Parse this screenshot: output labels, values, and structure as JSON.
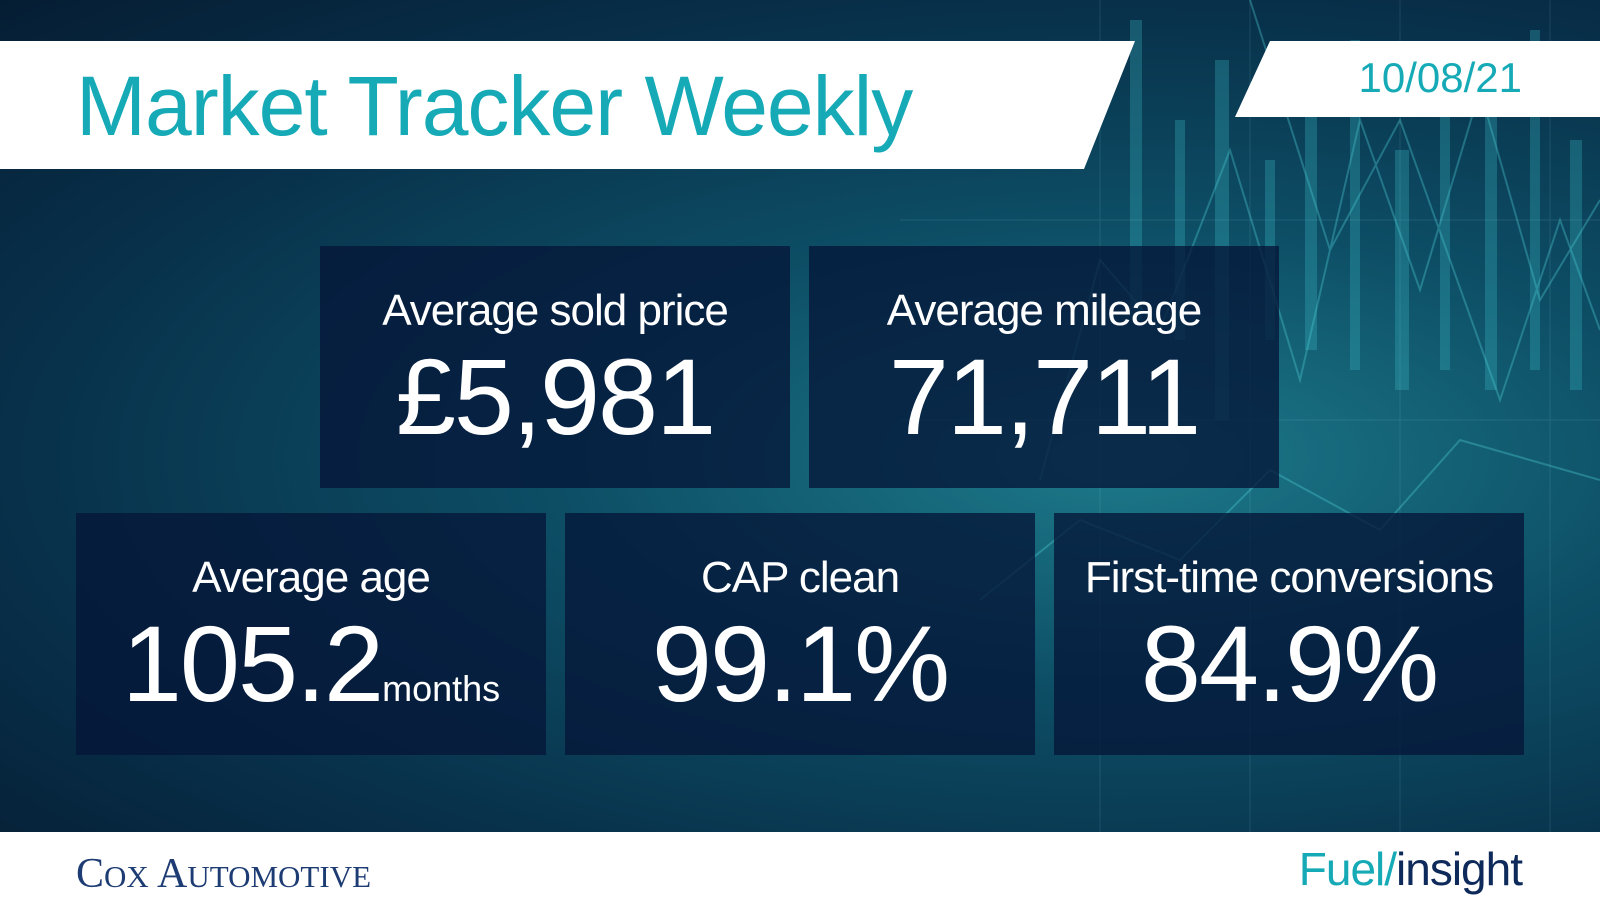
{
  "header": {
    "title": "Market Tracker Weekly",
    "date": "10/08/21"
  },
  "metrics": [
    {
      "label": "Average sold price",
      "value": "£5,981",
      "unit": ""
    },
    {
      "label": "Average mileage",
      "value": "71,711",
      "unit": ""
    },
    {
      "label": "Average age",
      "value": "105.2",
      "unit": "months"
    },
    {
      "label": "CAP clean",
      "value": "99.1%",
      "unit": ""
    },
    {
      "label": "First-time conversions",
      "value": "84.9%",
      "unit": ""
    }
  ],
  "footer": {
    "brand_left": {
      "cap1": "C",
      "rest1": "OX",
      "cap2": "A",
      "rest2": "UTOMOTIVE"
    },
    "brand_right": {
      "part1": "Fuel/",
      "part2": "insight"
    }
  },
  "colors": {
    "accent": "#16aab7",
    "card_bg": "#051638",
    "brand_navy": "#1e3c74"
  }
}
